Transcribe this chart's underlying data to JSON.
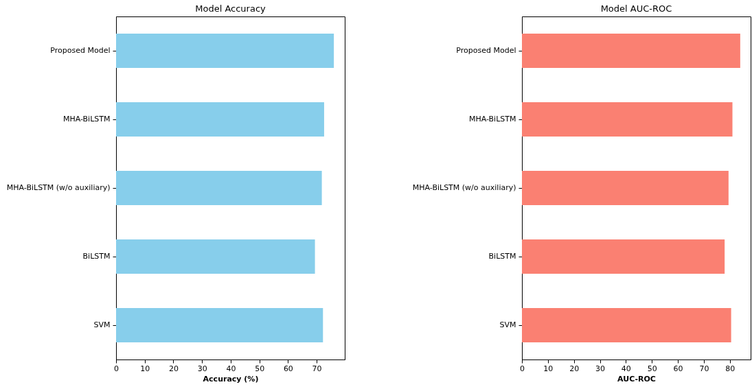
{
  "chart_data": [
    {
      "type": "bar",
      "orientation": "horizontal",
      "title": "Model Accuracy",
      "xlabel": "Accuracy (%)",
      "categories": [
        "Proposed Model",
        "MHA-BiLSTM",
        "MHA-BiLSTM (w/o auxiliary)",
        "BiLSTM",
        "SVM"
      ],
      "values": [
        76.0,
        72.6,
        71.8,
        69.4,
        72.2
      ],
      "color": "#87ceeb",
      "xlim": [
        0,
        79.8
      ],
      "xticks": [
        0,
        10,
        20,
        30,
        40,
        50,
        60,
        70
      ]
    },
    {
      "type": "bar",
      "orientation": "horizontal",
      "title": "Model AUC-ROC",
      "xlabel": "AUC-ROC",
      "categories": [
        "Proposed Model",
        "MHA-BiLSTM",
        "MHA-BiLSTM (w/o auxiliary)",
        "BiLSTM",
        "SVM"
      ],
      "values": [
        84.0,
        81.0,
        79.5,
        78.0,
        80.5
      ],
      "color": "#fa8072",
      "xlim": [
        0,
        88
      ],
      "xticks": [
        0,
        10,
        20,
        30,
        40,
        50,
        60,
        70,
        80
      ]
    }
  ]
}
